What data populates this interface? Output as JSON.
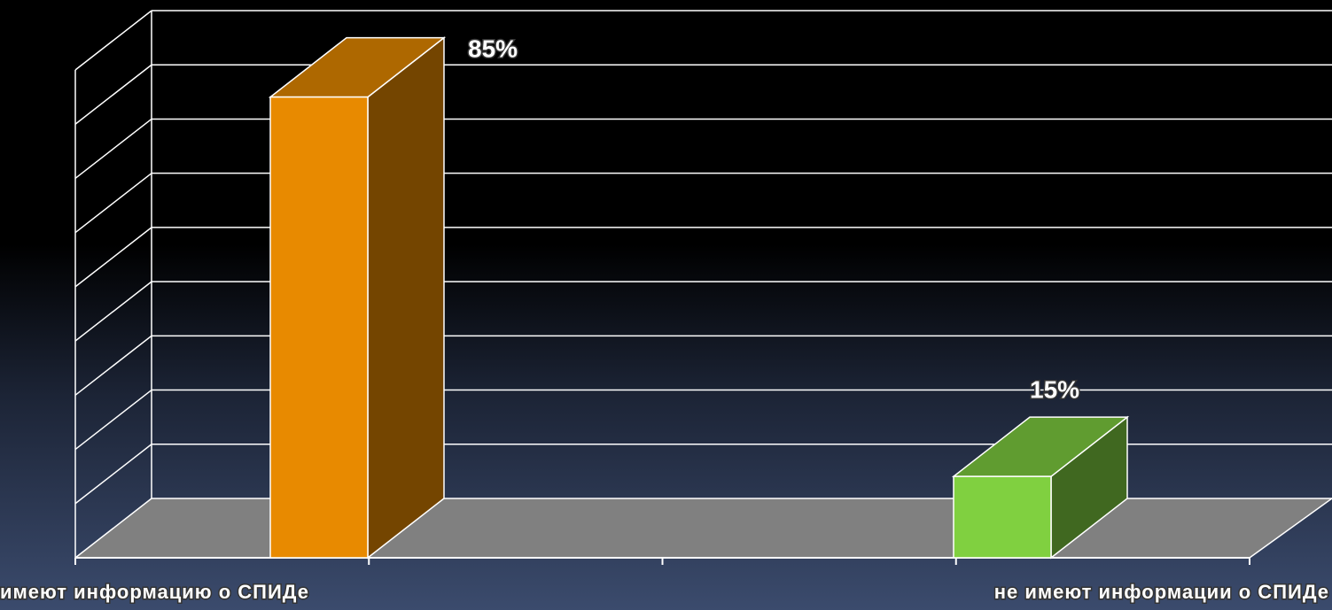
{
  "chart_data": {
    "type": "bar3d",
    "categories": [
      "имеют информацию о СПИДе",
      "не имеют информации о СПИДе"
    ],
    "values": [
      85,
      15
    ],
    "value_labels": [
      "85%",
      "15%"
    ],
    "colors": [
      "#e88a00",
      "#80d040"
    ],
    "ylim": [
      0,
      90
    ],
    "yticks": [
      0,
      10,
      20,
      30,
      40,
      50,
      60,
      70,
      80,
      90
    ],
    "grid": true
  }
}
